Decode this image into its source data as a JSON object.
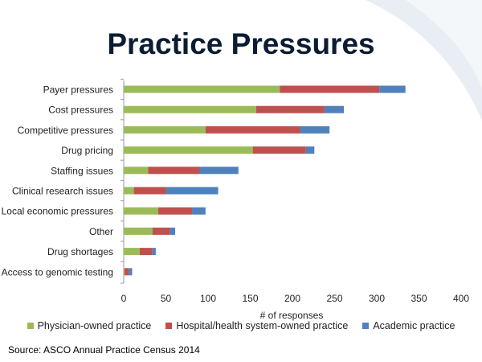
{
  "slide": {
    "title": "Practice Pressures",
    "source": "Source: ASCO Annual Practice Census 2014"
  },
  "colors": {
    "physician": "#9bbb59",
    "hospital": "#c0504d",
    "academic": "#4f81bd",
    "decor": "#dfe6ee"
  },
  "chart_data": {
    "type": "bar",
    "orientation": "horizontal",
    "stacked": true,
    "categories": [
      "Payer pressures",
      "Cost pressures",
      "Competitive pressures",
      "Drug pricing",
      "Staffing issues",
      "Clinical research issues",
      "Local economic pressures",
      "Other",
      "Drug shortages",
      "Access to genomic testing"
    ],
    "series": [
      {
        "name": "Physician-owned practice",
        "values": [
          185,
          157,
          97,
          153,
          29,
          12,
          41,
          34,
          19,
          1
        ]
      },
      {
        "name": "Hospital/health system-owned practice",
        "values": [
          118,
          81,
          112,
          63,
          61,
          38,
          40,
          21,
          15,
          5
        ]
      },
      {
        "name": "Academic practice",
        "values": [
          31,
          23,
          35,
          10,
          46,
          62,
          16,
          6,
          4,
          4
        ]
      }
    ],
    "xlabel": "# of responses",
    "ylabel": "",
    "xlim": [
      0,
      400
    ],
    "xticks": [
      0,
      50,
      100,
      150,
      200,
      250,
      300,
      350,
      400
    ],
    "grid": false,
    "legend": "bottom"
  }
}
